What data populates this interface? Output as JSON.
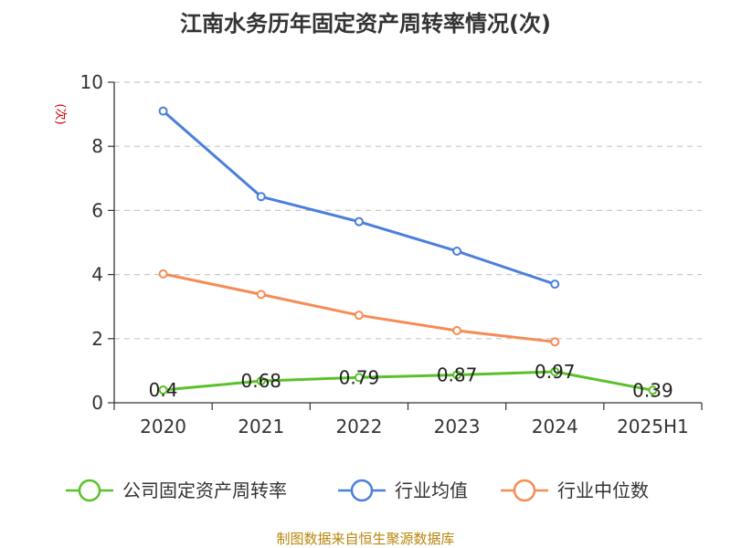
{
  "chart_data": {
    "type": "line",
    "title": "江南水务历年固定资产周转率情况(次)",
    "ylabel": "(次)",
    "xlabel": "",
    "categories": [
      "2020",
      "2021",
      "2022",
      "2023",
      "2024",
      "2025H1"
    ],
    "ylim": [
      0,
      10
    ],
    "yticks": [
      0,
      2,
      4,
      6,
      8,
      10
    ],
    "grid": true,
    "legend_position": "bottom",
    "series": [
      {
        "name": "公司固定资产周转率",
        "color": "#5ac12a",
        "values": [
          0.4,
          0.68,
          0.79,
          0.87,
          0.97,
          0.39
        ],
        "labels": [
          "0.4",
          "0.68",
          "0.79",
          "0.87",
          "0.97",
          "0.39"
        ],
        "show_labels": true
      },
      {
        "name": "行业均值",
        "color": "#4a7fdb",
        "values": [
          9.1,
          6.43,
          5.65,
          4.73,
          3.7,
          null
        ],
        "show_labels": false
      },
      {
        "name": "行业中位数",
        "color": "#f58c55",
        "values": [
          4.02,
          3.38,
          2.73,
          2.25,
          1.9,
          null
        ],
        "show_labels": false
      }
    ],
    "source": "制图数据来自恒生聚源数据库"
  }
}
